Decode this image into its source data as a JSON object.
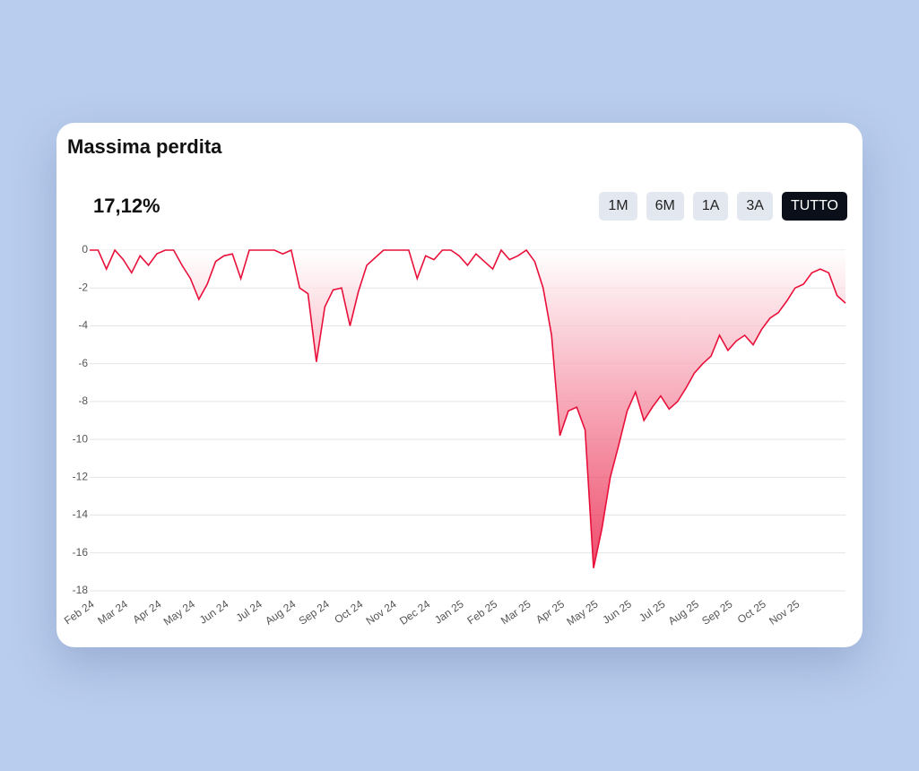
{
  "card": {
    "title": "Massima perdita",
    "value": "17,12%",
    "buttons": [
      {
        "label": "1M",
        "active": false
      },
      {
        "label": "6M",
        "active": false
      },
      {
        "label": "1A",
        "active": false
      },
      {
        "label": "3A",
        "active": false
      },
      {
        "label": "TUTTO",
        "active": true
      }
    ]
  },
  "chart_data": {
    "type": "area",
    "color": "#e8103a",
    "grid": true,
    "categories": [
      "Feb 24",
      null,
      null,
      null,
      "Mar 24",
      null,
      null,
      null,
      "Apr 24",
      null,
      null,
      null,
      "May 24",
      null,
      null,
      null,
      "Jun 24",
      null,
      null,
      null,
      "Jul 24",
      null,
      null,
      null,
      "Aug 24",
      null,
      null,
      null,
      "Sep 24",
      null,
      null,
      null,
      "Oct 24",
      null,
      null,
      null,
      "Nov 24",
      null,
      null,
      null,
      "Dec 24",
      null,
      null,
      null,
      "Jan 25",
      null,
      null,
      null,
      "Feb 25",
      null,
      null,
      null,
      "Mar 25",
      null,
      null,
      null,
      "Apr 25",
      null,
      null,
      null,
      "May 25",
      null,
      null,
      null,
      "Jun 25",
      null,
      null,
      null,
      "Jul 25",
      null,
      null,
      null,
      "Aug 25",
      null,
      null,
      null,
      "Sep 25",
      null,
      null,
      null,
      "Oct 25",
      null,
      null,
      null,
      "Nov 25",
      null,
      null,
      null,
      null,
      null,
      null
    ],
    "values": [
      0,
      0,
      -1,
      0,
      -0.5,
      -1.2,
      -0.3,
      -0.8,
      -0.2,
      0,
      0,
      -0.8,
      -1.5,
      -2.6,
      -1.8,
      -0.6,
      -0.3,
      -0.2,
      -1.5,
      0,
      0,
      0,
      0,
      -0.2,
      0,
      -2,
      -2.3,
      -5.9,
      -3,
      -2.1,
      -2,
      -4,
      -2.2,
      -0.8,
      -0.4,
      0,
      0,
      0,
      0,
      -1.5,
      -0.3,
      -0.5,
      0,
      0,
      -0.3,
      -0.8,
      -0.2,
      -0.6,
      -1,
      0,
      -0.5,
      -0.3,
      0,
      -0.6,
      -2,
      -4.5,
      -9.8,
      -8.5,
      -8.3,
      -9.5,
      -16.8,
      -14.7,
      -12,
      -10.3,
      -8.5,
      -7.5,
      -9,
      -8.3,
      -7.7,
      -8.4,
      -8,
      -7.3,
      -6.5,
      -6,
      -5.6,
      -4.5,
      -5.3,
      -4.8,
      -4.5,
      -5,
      -4.2,
      -3.6,
      -3.3,
      -2.7,
      -2,
      -1.8,
      -1.2,
      -1,
      -1.2,
      -2.4,
      -2.8
    ],
    "ylim": [
      -18,
      0
    ],
    "yticks": [
      0,
      -2,
      -4,
      -6,
      -8,
      -10,
      -12,
      -14,
      -16,
      -18
    ]
  }
}
